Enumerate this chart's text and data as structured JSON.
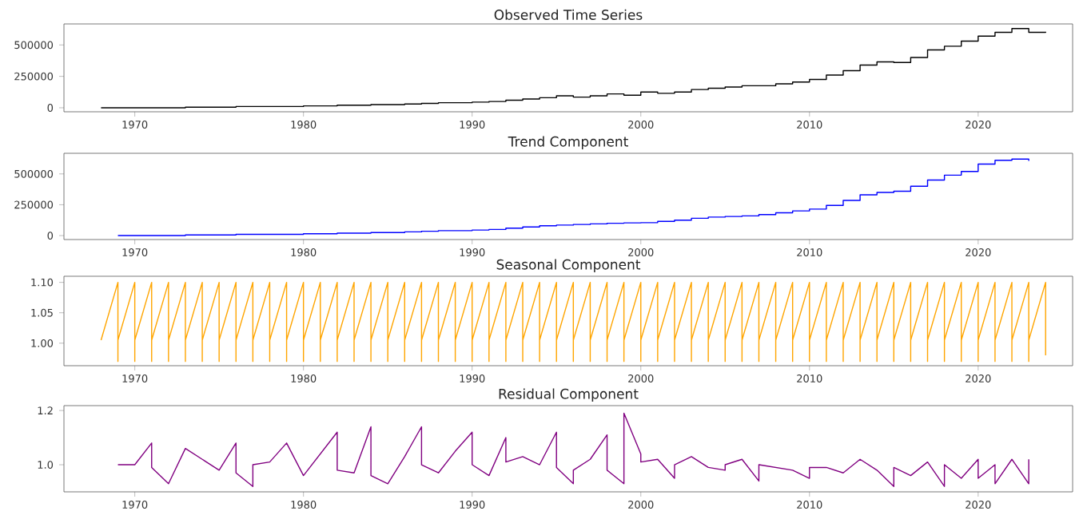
{
  "chart_data": [
    {
      "type": "step",
      "title": "Observed Time Series",
      "x": [
        1968,
        1969,
        1970,
        1971,
        1972,
        1973,
        1974,
        1975,
        1976,
        1977,
        1978,
        1979,
        1980,
        1981,
        1982,
        1983,
        1984,
        1985,
        1986,
        1987,
        1988,
        1989,
        1990,
        1991,
        1992,
        1993,
        1994,
        1995,
        1996,
        1997,
        1998,
        1999,
        2000,
        2001,
        2002,
        2003,
        2004,
        2005,
        2006,
        2007,
        2008,
        2009,
        2010,
        2011,
        2012,
        2013,
        2014,
        2015,
        2016,
        2017,
        2018,
        2019,
        2020,
        2021,
        2022,
        2023,
        2024
      ],
      "series": [
        {
          "color": "#000000",
          "values": [
            0,
            0,
            0,
            0,
            0,
            5000,
            5000,
            5000,
            10000,
            10000,
            10000,
            10000,
            15000,
            15000,
            20000,
            20000,
            25000,
            25000,
            30000,
            35000,
            40000,
            40000,
            45000,
            50000,
            60000,
            70000,
            80000,
            95000,
            85000,
            95000,
            110000,
            100000,
            125000,
            115000,
            125000,
            145000,
            155000,
            165000,
            175000,
            175000,
            190000,
            205000,
            225000,
            260000,
            295000,
            340000,
            365000,
            360000,
            400000,
            460000,
            490000,
            530000,
            570000,
            600000,
            630000,
            600000,
            605000
          ]
        }
      ],
      "xlim": [
        1965.8,
        2025.6
      ],
      "xticks": [
        1970,
        1980,
        1990,
        2000,
        2010,
        2020
      ],
      "ylim": [
        -32000,
        667000
      ],
      "yticks": [
        0,
        250000,
        500000
      ]
    },
    {
      "type": "step",
      "title": "Trend Component",
      "x": [
        1969,
        1970,
        1971,
        1972,
        1973,
        1974,
        1975,
        1976,
        1977,
        1978,
        1979,
        1980,
        1981,
        1982,
        1983,
        1984,
        1985,
        1986,
        1987,
        1988,
        1989,
        1990,
        1991,
        1992,
        1993,
        1994,
        1995,
        1996,
        1997,
        1998,
        1999,
        2000,
        2001,
        2002,
        2003,
        2004,
        2005,
        2006,
        2007,
        2008,
        2009,
        2010,
        2011,
        2012,
        2013,
        2014,
        2015,
        2016,
        2017,
        2018,
        2019,
        2020,
        2021,
        2022,
        2023
      ],
      "series": [
        {
          "color": "#0000ff",
          "values": [
            0,
            0,
            0,
            0,
            5000,
            5000,
            5000,
            10000,
            10000,
            10000,
            10000,
            15000,
            15000,
            20000,
            20000,
            25000,
            25000,
            30000,
            35000,
            40000,
            40000,
            45000,
            50000,
            60000,
            70000,
            80000,
            85000,
            90000,
            95000,
            100000,
            103000,
            105000,
            115000,
            125000,
            140000,
            150000,
            155000,
            160000,
            170000,
            185000,
            200000,
            215000,
            245000,
            285000,
            330000,
            350000,
            360000,
            400000,
            450000,
            490000,
            520000,
            580000,
            610000,
            620000,
            605000
          ]
        }
      ],
      "xlim": [
        1965.8,
        2025.6
      ],
      "xticks": [
        1970,
        1980,
        1990,
        2000,
        2010,
        2020
      ],
      "ylim": [
        -32000,
        667000
      ],
      "yticks": [
        0,
        250000,
        500000
      ]
    },
    {
      "type": "line",
      "title": "Seasonal Component",
      "x": [
        1968,
        1969,
        1969,
        1969,
        1970,
        1970,
        1970,
        1971,
        1971,
        1971,
        1972,
        1972,
        1972,
        1973,
        1973,
        1973,
        1974,
        1974,
        1974,
        1975,
        1975,
        1975,
        1976,
        1976,
        1976,
        1977,
        1977,
        1977,
        1978,
        1978,
        1978,
        1979,
        1979,
        1979,
        1980,
        1980,
        1980,
        1981,
        1981,
        1981,
        1982,
        1982,
        1982,
        1983,
        1983,
        1983,
        1984,
        1984,
        1984,
        1985,
        1985,
        1985,
        1986,
        1986,
        1986,
        1987,
        1987,
        1987,
        1988,
        1988,
        1988,
        1989,
        1989,
        1989,
        1990,
        1990,
        1990,
        1991,
        1991,
        1991,
        1992,
        1992,
        1992,
        1993,
        1993,
        1993,
        1994,
        1994,
        1994,
        1995,
        1995,
        1995,
        1996,
        1996,
        1996,
        1997,
        1997,
        1997,
        1998,
        1998,
        1998,
        1999,
        1999,
        1999,
        2000,
        2000,
        2000,
        2001,
        2001,
        2001,
        2002,
        2002,
        2002,
        2003,
        2003,
        2003,
        2004,
        2004,
        2004,
        2005,
        2005,
        2005,
        2006,
        2006,
        2006,
        2007,
        2007,
        2007,
        2008,
        2008,
        2008,
        2009,
        2009,
        2009,
        2010,
        2010,
        2010,
        2011,
        2011,
        2011,
        2012,
        2012,
        2012,
        2013,
        2013,
        2013,
        2014,
        2014,
        2014,
        2015,
        2015,
        2015,
        2016,
        2016,
        2016,
        2017,
        2017,
        2017,
        2018,
        2018,
        2018,
        2019,
        2019,
        2019,
        2020,
        2020,
        2020,
        2021,
        2021,
        2021,
        2022,
        2022,
        2022,
        2023,
        2023,
        2023,
        2024,
        2024
      ],
      "series": [
        {
          "color": "#ffa500",
          "values": [
            1.005,
            1.1,
            0.97,
            1.005,
            1.1,
            0.97,
            1.005,
            1.1,
            0.97,
            1.005,
            1.1,
            0.97,
            1.005,
            1.1,
            0.97,
            1.005,
            1.1,
            0.97,
            1.005,
            1.1,
            0.97,
            1.005,
            1.1,
            0.97,
            1.005,
            1.1,
            0.97,
            1.005,
            1.1,
            0.97,
            1.005,
            1.1,
            0.97,
            1.005,
            1.1,
            0.97,
            1.005,
            1.1,
            0.97,
            1.005,
            1.1,
            0.97,
            1.005,
            1.1,
            0.97,
            1.005,
            1.1,
            0.97,
            1.005,
            1.1,
            0.97,
            1.005,
            1.1,
            0.97,
            1.005,
            1.1,
            0.97,
            1.005,
            1.1,
            0.97,
            1.005,
            1.1,
            0.97,
            1.005,
            1.1,
            0.97,
            1.005,
            1.1,
            0.97,
            1.005,
            1.1,
            0.97,
            1.005,
            1.1,
            0.97,
            1.005,
            1.1,
            0.97,
            1.005,
            1.1,
            0.97,
            1.005,
            1.1,
            0.97,
            1.005,
            1.1,
            0.97,
            1.005,
            1.1,
            0.97,
            1.005,
            1.1,
            0.97,
            1.005,
            1.1,
            0.97,
            1.005,
            1.1,
            0.97,
            1.005,
            1.1,
            0.97,
            1.005,
            1.1,
            0.97,
            1.005,
            1.1,
            0.97,
            1.005,
            1.1,
            0.97,
            1.005,
            1.1,
            0.97,
            1.005,
            1.1,
            0.97,
            1.005,
            1.1,
            0.97,
            1.005,
            1.1,
            0.97,
            1.005,
            1.1,
            0.97,
            1.005,
            1.1,
            0.97,
            1.005,
            1.1,
            0.97,
            1.005,
            1.1,
            0.97,
            1.005,
            1.1,
            0.97,
            1.005,
            1.1,
            0.97,
            1.005,
            1.1,
            0.97,
            1.005,
            1.1,
            0.97,
            1.005,
            1.1,
            0.97,
            1.005,
            1.1,
            0.97,
            1.005,
            1.1,
            0.97,
            1.005,
            1.1,
            0.97,
            1.005,
            1.1,
            0.97,
            1.005,
            1.1,
            0.97,
            1.005,
            1.1,
            0.98
          ]
        }
      ],
      "xlim": [
        1965.8,
        2025.6
      ],
      "xticks": [
        1970,
        1980,
        1990,
        2000,
        2010,
        2020
      ],
      "ylim": [
        0.963,
        1.11
      ],
      "yticks": [
        {
          "value": 1.0,
          "label": "1.00"
        },
        {
          "value": 1.05,
          "label": "1.05"
        },
        {
          "value": 1.1,
          "label": "1.10"
        }
      ]
    },
    {
      "type": "line",
      "title": "Residual Component",
      "x": [
        1969,
        1970,
        1971,
        1971,
        1972,
        1973,
        1974,
        1975,
        1976,
        1976,
        1977,
        1977,
        1978,
        1979,
        1980,
        1981,
        1982,
        1982,
        1983,
        1984,
        1984,
        1985,
        1986,
        1987,
        1987,
        1988,
        1989,
        1990,
        1990,
        1991,
        1992,
        1992,
        1993,
        1994,
        1995,
        1995,
        1996,
        1996,
        1997,
        1998,
        1998,
        1999,
        1999,
        2000,
        2000,
        2001,
        2002,
        2002,
        2003,
        2004,
        2005,
        2005,
        2006,
        2007,
        2007,
        2009,
        2010,
        2010,
        2011,
        2012,
        2013,
        2014,
        2015,
        2015,
        2016,
        2017,
        2018,
        2018,
        2019,
        2020,
        2020,
        2021,
        2021,
        2022,
        2023,
        2023
      ],
      "series": [
        {
          "color": "#800080",
          "values": [
            1.0,
            1.0,
            1.08,
            0.99,
            0.93,
            1.06,
            1.02,
            0.98,
            1.08,
            0.97,
            0.92,
            1.0,
            1.01,
            1.08,
            0.96,
            1.04,
            1.12,
            0.98,
            0.97,
            1.14,
            0.96,
            0.93,
            1.03,
            1.14,
            1.0,
            0.97,
            1.05,
            1.12,
            1.0,
            0.96,
            1.1,
            1.01,
            1.03,
            1.0,
            1.12,
            0.99,
            0.93,
            0.98,
            1.02,
            1.11,
            0.98,
            0.93,
            1.19,
            1.04,
            1.01,
            1.02,
            0.95,
            1.0,
            1.03,
            0.99,
            0.98,
            1.0,
            1.02,
            0.94,
            1.0,
            0.98,
            0.95,
            0.99,
            0.99,
            0.97,
            1.02,
            0.98,
            0.92,
            0.99,
            0.96,
            1.01,
            0.92,
            1.0,
            0.95,
            1.02,
            0.95,
            1.0,
            0.93,
            1.02,
            0.93,
            1.02
          ]
        }
      ],
      "xlim": [
        1965.8,
        2025.6
      ],
      "xticks": [
        1970,
        1980,
        1990,
        2000,
        2010,
        2020
      ],
      "ylim": [
        0.9,
        1.218
      ],
      "yticks": [
        {
          "value": 1.0,
          "label": "1.0"
        },
        {
          "value": 1.2,
          "label": "1.2"
        }
      ]
    }
  ]
}
